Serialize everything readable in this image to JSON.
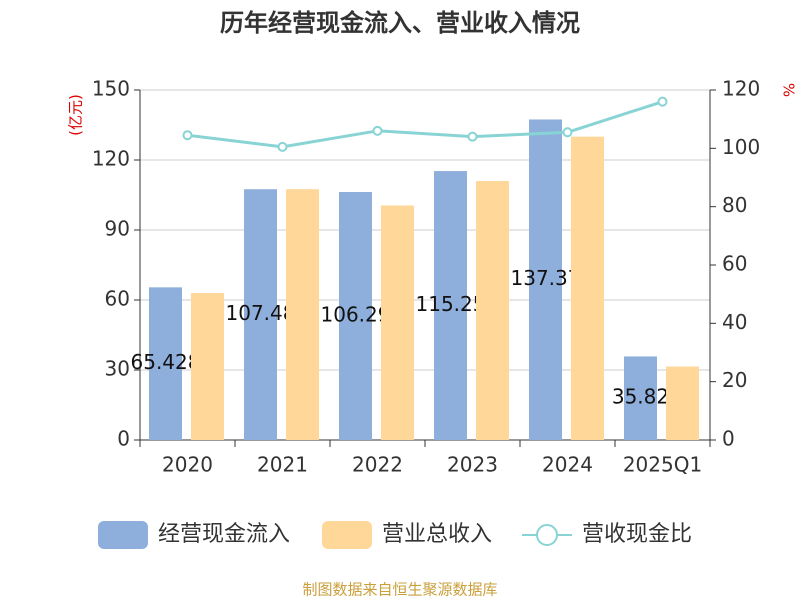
{
  "chart_data": {
    "type": "bar",
    "title": "历年经营现金流入、营业收入情况",
    "ylabel": "(亿元)",
    "y2label": "%",
    "source": "制图数据来自恒生聚源数据库",
    "categories": [
      "2020",
      "2021",
      "2022",
      "2023",
      "2024",
      "2025Q1"
    ],
    "series": [
      {
        "name": "经营现金流入",
        "type": "bar",
        "color": "#8eaedc",
        "values": [
          65.428,
          107.48,
          106.29,
          115.25,
          137.37,
          35.82
        ]
      },
      {
        "name": "营业总收入",
        "type": "bar",
        "color": "#ffd899",
        "values": [
          63,
          107.5,
          100.5,
          111,
          130,
          31.5
        ]
      },
      {
        "name": "营收现金比",
        "type": "line",
        "axis": "y2",
        "color": "#88d4d4",
        "values": [
          104.5,
          100.5,
          106,
          104,
          105.5,
          116
        ]
      }
    ],
    "ylim": [
      0,
      150
    ],
    "yticks": [
      0,
      30,
      60,
      90,
      120,
      150
    ],
    "y2lim": [
      0,
      120
    ],
    "y2ticks": [
      0,
      20,
      40,
      60,
      80,
      100,
      120
    ],
    "grid": true,
    "legend": "bottom"
  }
}
